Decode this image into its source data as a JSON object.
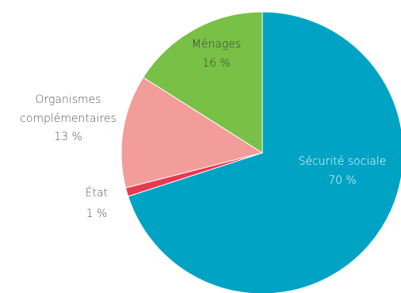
{
  "chart_data": {
    "type": "pie",
    "title": "",
    "slices": [
      {
        "label": "Sécurité sociale",
        "value": 70,
        "display": "70 %",
        "color": "#00a3c4",
        "label_color": "#ffffff"
      },
      {
        "label": "État",
        "value": 1,
        "display": "1 %",
        "color": "#e8394f",
        "label_color": "#555555"
      },
      {
        "label_lines": [
          "Organismes",
          "complémentaires"
        ],
        "label": "Organismes complémentaires",
        "value": 13,
        "display": "13 %",
        "color": "#f29d9a",
        "label_color": "#555555"
      },
      {
        "label": "Ménages",
        "value": 16,
        "display": "16 %",
        "color": "#78c046",
        "label_color": "#3d3d3d"
      }
    ]
  }
}
